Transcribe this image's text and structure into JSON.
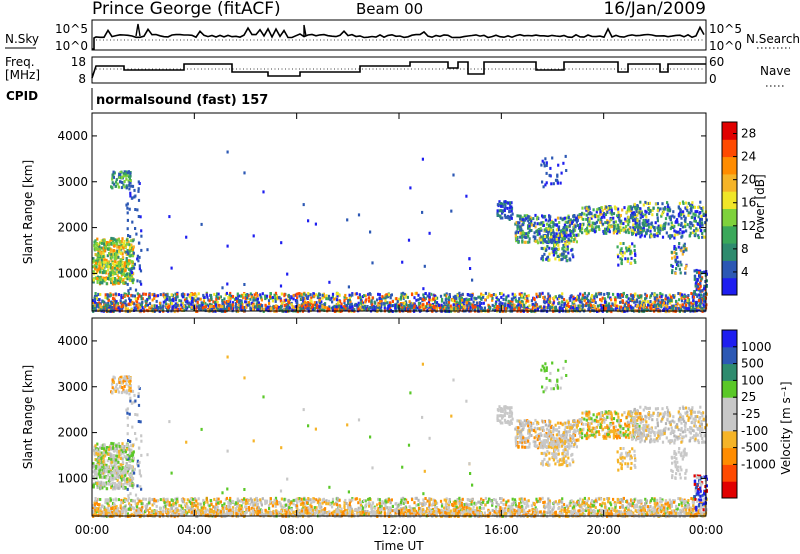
{
  "header": {
    "station": "Prince George (fitACF)",
    "beam": "Beam 00",
    "date": "16/Jan/2009"
  },
  "noise_panel": {
    "left_label": "N.Sky",
    "left_ticks": [
      "10^5",
      "10^0"
    ],
    "right_label": "N.Search",
    "right_ticks": [
      "10^5",
      "10^0"
    ]
  },
  "freq_panel": {
    "left_label_line1": "Freq.",
    "left_label_line2": "[MHz]",
    "left_ticks": [
      "18",
      "8"
    ],
    "right_label": "Nave",
    "right_ticks": [
      "60",
      "0"
    ]
  },
  "cpid": {
    "label": "CPID",
    "value": "normalsound (fast) 157"
  },
  "colors": {
    "power": [
      "#1e1ef0",
      "#2c58b4",
      "#2e8b6e",
      "#3aa85a",
      "#7ed23c",
      "#f0e628",
      "#f5b428",
      "#ff8c00",
      "#ff4a00",
      "#e00000"
    ],
    "velocity": [
      "#e00000",
      "#ff4a00",
      "#ff8c00",
      "#f5b428",
      "#c8c8c8",
      "#c8c8c8",
      "#5ac828",
      "#2e8b6e",
      "#2c58b4",
      "#1e1ef0"
    ],
    "ground": "#b4b4b4"
  },
  "chart_data": [
    {
      "type": "heatmap",
      "name": "power",
      "ylabel": "Slant Range [km]",
      "yticks": [
        "4000",
        "3000",
        "2000",
        "1000"
      ],
      "ylim": [
        180,
        4500
      ],
      "xlim": [
        0,
        24
      ],
      "colorbar_label": "Power [dB]",
      "colorbar_ticks": [
        "28",
        "24",
        "20",
        "16",
        "12",
        "8",
        "4"
      ],
      "colorbar_range": [
        0,
        30
      ]
    },
    {
      "type": "heatmap",
      "name": "velocity",
      "ylabel": "Slant Range [km]",
      "yticks": [
        "4000",
        "3000",
        "2000",
        "1000"
      ],
      "ylim": [
        180,
        4500
      ],
      "xlim": [
        0,
        24
      ],
      "xlabel": "Time UT",
      "xticks": [
        "00:00",
        "04:00",
        "08:00",
        "12:00",
        "16:00",
        "20:00",
        "00:00"
      ],
      "colorbar_label": "Velocity [m s⁻¹]",
      "colorbar_ticks": [
        "1000",
        "500",
        "100",
        "25",
        "-25",
        "-100",
        "-500",
        "-1000"
      ]
    }
  ]
}
